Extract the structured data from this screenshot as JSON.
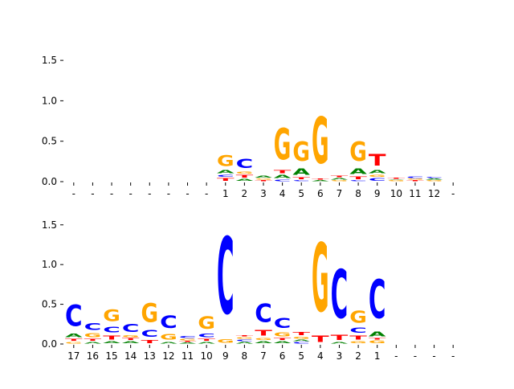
{
  "colors": {
    "A": "#008000",
    "C": "#0000ff",
    "G": "#ffa500",
    "T": "#ff0000",
    "axis": "#000000"
  },
  "chart_data": [
    {
      "type": "sequence-logo",
      "ylim": [
        0,
        1.7
      ],
      "yticks": [
        "0.0",
        "0.5",
        "1.0",
        "1.5"
      ],
      "ytick_values": [
        0,
        0.5,
        1.0,
        1.5
      ],
      "positions": [
        "-",
        "-",
        "-",
        "-",
        "-",
        "-",
        "-",
        "-",
        "1",
        "2",
        "3",
        "4",
        "5",
        "6",
        "7",
        "8",
        "9",
        "10",
        "11",
        "12",
        "-"
      ],
      "columns": [
        [],
        [],
        [],
        [],
        [],
        [],
        [],
        [],
        [
          [
            "T",
            0.05
          ],
          [
            "C",
            0.04
          ],
          [
            "A",
            0.06
          ],
          [
            "G",
            0.22
          ]
        ],
        [
          [
            "A",
            0.04
          ],
          [
            "T",
            0.05
          ],
          [
            "G",
            0.04
          ],
          [
            "C",
            0.19
          ]
        ],
        [
          [
            "T",
            0.02
          ],
          [
            "G",
            0.02
          ],
          [
            "A",
            0.04
          ]
        ],
        [
          [
            "C",
            0.03
          ],
          [
            "A",
            0.06
          ],
          [
            "T",
            0.06
          ],
          [
            "G",
            0.62
          ]
        ],
        [
          [
            "C",
            0.02
          ],
          [
            "T",
            0.04
          ],
          [
            "A",
            0.12
          ],
          [
            "G",
            0.38
          ]
        ],
        [
          [
            "A",
            0.02
          ],
          [
            "T",
            0.02
          ],
          [
            "G",
            0.92
          ]
        ],
        [
          [
            "G",
            0.02
          ],
          [
            "A",
            0.03
          ],
          [
            "T",
            0.03
          ]
        ],
        [
          [
            "C",
            0.02
          ],
          [
            "T",
            0.05
          ],
          [
            "A",
            0.11
          ],
          [
            "G",
            0.38
          ]
        ],
        [
          [
            "C",
            0.05
          ],
          [
            "G",
            0.04
          ],
          [
            "A",
            0.06
          ],
          [
            "T",
            0.23
          ]
        ],
        [
          [
            "G",
            0.02
          ],
          [
            "A",
            0.01
          ],
          [
            "T",
            0.02
          ]
        ],
        [
          [
            "T",
            0.02
          ],
          [
            "G",
            0.02
          ],
          [
            "C",
            0.03
          ]
        ],
        [
          [
            "G",
            0.02
          ],
          [
            "A",
            0.02
          ],
          [
            "C",
            0.02
          ]
        ],
        []
      ]
    },
    {
      "type": "sequence-logo",
      "ylim": [
        0,
        1.7
      ],
      "yticks": [
        "0.0",
        "0.5",
        "1.0",
        "1.5"
      ],
      "ytick_values": [
        0,
        0.5,
        1.0,
        1.5
      ],
      "positions": [
        "17",
        "16",
        "15",
        "14",
        "13",
        "12",
        "11",
        "10",
        "9",
        "8",
        "7",
        "6",
        "5",
        "4",
        "3",
        "2",
        "1",
        "-",
        "-",
        "-",
        "-"
      ],
      "columns": [
        [
          [
            "G",
            0.03
          ],
          [
            "T",
            0.04
          ],
          [
            "A",
            0.07
          ],
          [
            "C",
            0.43
          ]
        ],
        [
          [
            "A",
            0.03
          ],
          [
            "T",
            0.04
          ],
          [
            "G",
            0.08
          ],
          [
            "C",
            0.14
          ]
        ],
        [
          [
            "A",
            0.04
          ],
          [
            "T",
            0.08
          ],
          [
            "C",
            0.12
          ],
          [
            "G",
            0.23
          ]
        ],
        [
          [
            "A",
            0.04
          ],
          [
            "T",
            0.04
          ],
          [
            "G",
            0.04
          ],
          [
            "C",
            0.16
          ]
        ],
        [
          [
            "T",
            0.06
          ],
          [
            "C",
            0.14
          ],
          [
            "G",
            0.38
          ]
        ],
        [
          [
            "A",
            0.03
          ],
          [
            "G",
            0.12
          ],
          [
            "C",
            0.25
          ]
        ],
        [
          [
            "A",
            0.02
          ],
          [
            "T",
            0.02
          ],
          [
            "G",
            0.03
          ],
          [
            "C",
            0.04
          ]
        ],
        [
          [
            "A",
            0.03
          ],
          [
            "T",
            0.04
          ],
          [
            "C",
            0.07
          ],
          [
            "G",
            0.25
          ]
        ],
        [
          [
            "G",
            0.07
          ],
          [
            "C",
            1.55
          ]
        ],
        [
          [
            "A",
            0.03
          ],
          [
            "C",
            0.03
          ],
          [
            "G",
            0.03
          ],
          [
            "T",
            0.02
          ]
        ],
        [
          [
            "A",
            0.04
          ],
          [
            "G",
            0.04
          ],
          [
            "T",
            0.12
          ],
          [
            "C",
            0.37
          ]
        ],
        [
          [
            "A",
            0.04
          ],
          [
            "T",
            0.04
          ],
          [
            "G",
            0.08
          ],
          [
            "C",
            0.2
          ]
        ],
        [
          [
            "C",
            0.03
          ],
          [
            "A",
            0.03
          ],
          [
            "G",
            0.04
          ],
          [
            "T",
            0.06
          ]
        ],
        [
          [
            "T",
            0.13
          ],
          [
            "G",
            1.38
          ]
        ],
        [
          [
            "A",
            0.03
          ],
          [
            "T",
            0.1
          ],
          [
            "C",
            0.98
          ]
        ],
        [
          [
            "G",
            0.04
          ],
          [
            "T",
            0.08
          ],
          [
            "C",
            0.1
          ],
          [
            "G",
            0.24
          ]
        ],
        [
          [
            "G",
            0.05
          ],
          [
            "T",
            0.03
          ],
          [
            "A",
            0.09
          ],
          [
            "C",
            0.78
          ]
        ],
        [],
        [],
        [],
        []
      ]
    }
  ]
}
